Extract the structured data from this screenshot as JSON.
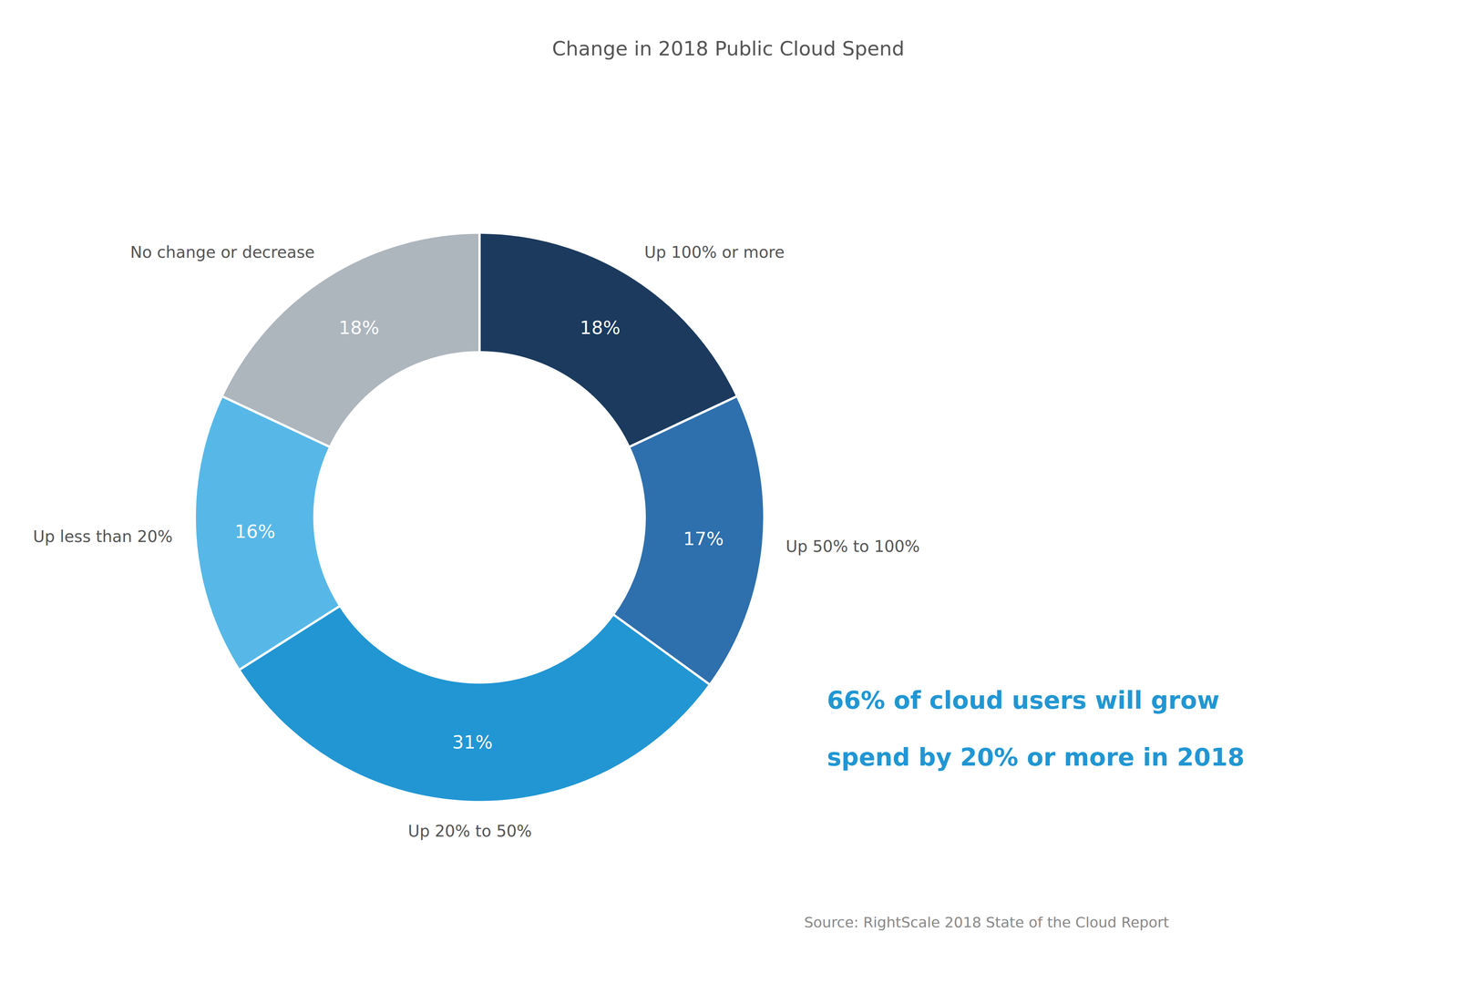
{
  "chart_data": {
    "type": "pie",
    "title": "Change in 2018 Public Cloud Spend",
    "categories": [
      "Up 100% or more",
      "Up 50% to 100%",
      "Up 20% to 50%",
      "Up less than 20%",
      "No change or decrease"
    ],
    "values": [
      18,
      17,
      31,
      16,
      18
    ],
    "value_labels": [
      "18%",
      "17%",
      "31%",
      "16%",
      "18%"
    ],
    "colors": [
      "#1b3a5e",
      "#2e6fad",
      "#2196d3",
      "#57b8e8",
      "#adb5bd"
    ],
    "data_labels": true,
    "annotations": [
      "66% of cloud users will grow",
      "spend by 20% or more in 2018"
    ],
    "source": "Source: RightScale 2018 State of the Cloud Report"
  }
}
